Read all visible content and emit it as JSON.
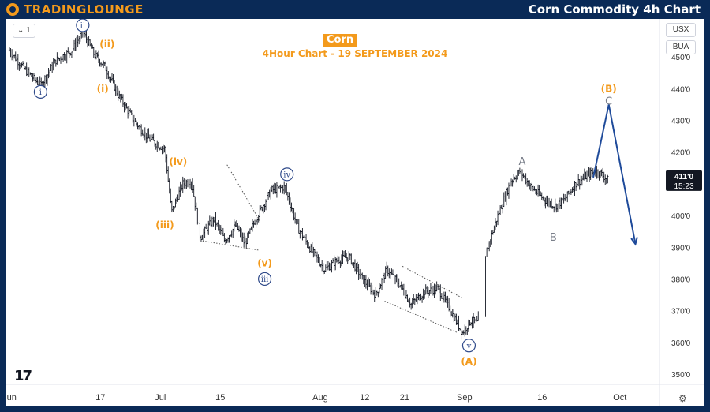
{
  "header": {
    "brand": "TRADINGLOUNGE",
    "title": "Corn Commodity 4h Chart"
  },
  "toolbar": {
    "interval_label": "1",
    "currency": "USX",
    "mode": "BUA"
  },
  "chart_title": {
    "symbol": "Corn",
    "subtitle": "4Hour Chart - 19 SEPTEMBER 2024"
  },
  "branding": {
    "tv_logo": "17"
  },
  "icons": {
    "settings": "gear-icon",
    "logo": "tradinglounge-logo-icon",
    "interval_chevron": "chevron-down-icon"
  },
  "colors": {
    "header_bg": "#0a2a57",
    "brand": "#f39a1c",
    "price_bar": "#131722",
    "wave_label_circle": "#2f4a8a",
    "wave_label_gray": "#7a7f8a",
    "projection_arrow": "#1e4a9a",
    "last_price_bg": "#131722"
  },
  "chart_data": {
    "type": "ohlc",
    "x_axis_ticks": [
      "Jun",
      "17",
      "Jul",
      "15",
      "Aug",
      "12",
      "21",
      "Sep",
      "16",
      "Oct"
    ],
    "y_axis_ticks": [
      "450'0",
      "440'0",
      "430'0",
      "420'0",
      "410'0",
      "400'0",
      "390'0",
      "380'0",
      "370'0",
      "360'0",
      "350'0"
    ],
    "y_range": [
      347,
      462
    ],
    "last_price": "411'0",
    "countdown": "15:23",
    "price_path": [
      {
        "t": 0,
        "p": 452
      },
      {
        "t": 7,
        "p": 446
      },
      {
        "t": 14,
        "p": 441
      },
      {
        "t": 21,
        "p": 449
      },
      {
        "t": 28,
        "p": 452
      },
      {
        "t": 33,
        "p": 458
      },
      {
        "t": 38,
        "p": 451
      },
      {
        "t": 43,
        "p": 447
      },
      {
        "t": 49,
        "p": 438
      },
      {
        "t": 56,
        "p": 430
      },
      {
        "t": 63,
        "p": 424
      },
      {
        "t": 70,
        "p": 421
      },
      {
        "t": 73,
        "p": 401
      },
      {
        "t": 78,
        "p": 410
      },
      {
        "t": 82,
        "p": 411
      },
      {
        "t": 86,
        "p": 393
      },
      {
        "t": 92,
        "p": 399
      },
      {
        "t": 97,
        "p": 392
      },
      {
        "t": 102,
        "p": 397
      },
      {
        "t": 106,
        "p": 391
      },
      {
        "t": 111,
        "p": 399
      },
      {
        "t": 118,
        "p": 408
      },
      {
        "t": 124,
        "p": 409
      },
      {
        "t": 130,
        "p": 396
      },
      {
        "t": 136,
        "p": 389
      },
      {
        "t": 142,
        "p": 383
      },
      {
        "t": 148,
        "p": 386
      },
      {
        "t": 153,
        "p": 387
      },
      {
        "t": 159,
        "p": 380
      },
      {
        "t": 165,
        "p": 375
      },
      {
        "t": 170,
        "p": 383
      },
      {
        "t": 176,
        "p": 378
      },
      {
        "t": 181,
        "p": 372
      },
      {
        "t": 187,
        "p": 376
      },
      {
        "t": 193,
        "p": 377
      },
      {
        "t": 198,
        "p": 371
      },
      {
        "t": 204,
        "p": 363
      },
      {
        "t": 208,
        "p": 367
      },
      {
        "t": 211,
        "p": 366
      },
      {
        "t": 215,
        "p": 389
      },
      {
        "t": 220,
        "p": 400
      },
      {
        "t": 226,
        "p": 411
      },
      {
        "t": 230,
        "p": 414
      },
      {
        "t": 235,
        "p": 409
      },
      {
        "t": 241,
        "p": 405
      },
      {
        "t": 246,
        "p": 403
      },
      {
        "t": 250,
        "p": 405
      },
      {
        "t": 255,
        "p": 410
      },
      {
        "t": 261,
        "p": 413
      },
      {
        "t": 265,
        "p": 414
      },
      {
        "t": 270,
        "p": 411
      }
    ],
    "wave_labels": [
      {
        "text": "i",
        "style": "circle",
        "t": 14,
        "p": 439
      },
      {
        "text": "ii",
        "style": "circle",
        "t": 33,
        "p": 460
      },
      {
        "text": "(ii)",
        "style": "orange",
        "t": 44,
        "p": 454
      },
      {
        "text": "(i)",
        "style": "orange",
        "t": 42,
        "p": 440
      },
      {
        "text": "(iv)",
        "style": "orange",
        "t": 76,
        "p": 417
      },
      {
        "text": "(iii)",
        "style": "orange",
        "t": 70,
        "p": 397
      },
      {
        "text": "(v)",
        "style": "orange",
        "t": 115,
        "p": 385
      },
      {
        "text": "iii",
        "style": "circle",
        "t": 115,
        "p": 380
      },
      {
        "text": "iv",
        "style": "circle",
        "t": 125,
        "p": 413
      },
      {
        "text": "v",
        "style": "circle",
        "t": 207,
        "p": 359
      },
      {
        "text": "(A)",
        "style": "orange",
        "t": 207,
        "p": 354
      },
      {
        "text": "A",
        "style": "gray",
        "t": 231,
        "p": 417
      },
      {
        "text": "B",
        "style": "gray",
        "t": 245,
        "p": 393
      },
      {
        "text": "C",
        "style": "gray",
        "t": 270,
        "p": 436
      },
      {
        "text": "(B)",
        "style": "orange",
        "t": 270,
        "p": 440
      }
    ],
    "projection": [
      {
        "t": 263,
        "p": 412
      },
      {
        "t": 270,
        "p": 435
      },
      {
        "t": 282,
        "p": 391
      }
    ],
    "trendlines": [
      {
        "t1": 87,
        "p1": 392,
        "t2": 113,
        "p2": 389
      },
      {
        "t1": 98,
        "p1": 416,
        "t2": 113,
        "p2": 398
      },
      {
        "t1": 177,
        "p1": 384,
        "t2": 204,
        "p2": 374
      },
      {
        "t1": 169,
        "p1": 373,
        "t2": 202,
        "p2": 363
      }
    ]
  }
}
